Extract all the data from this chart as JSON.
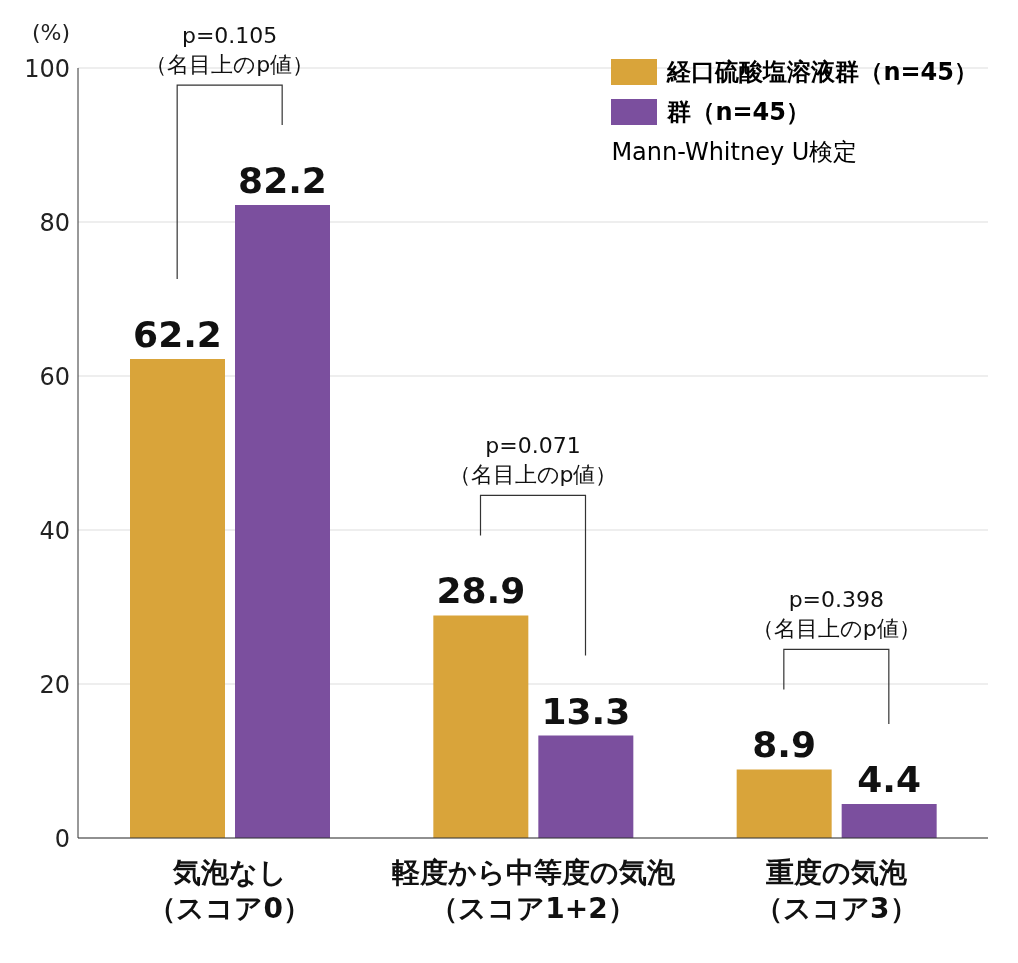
{
  "chart_data": {
    "type": "bar",
    "ylabel": "(%)",
    "categories": [
      "気泡なし（スコア0）",
      "軽度から中等度の気泡（スコア1+2）",
      "重度の気泡（スコア3）"
    ],
    "series": [
      {
        "name": "経口硫酸塩溶液群（n=45）",
        "color": "#d9a43a",
        "values": [
          62.2,
          28.9,
          8.9
        ]
      },
      {
        "name": "群（n=45）",
        "color": "#7b4f9e",
        "values": [
          82.2,
          13.3,
          4.4
        ]
      }
    ],
    "ylim": [
      0,
      100
    ],
    "yticks": [
      0,
      20,
      40,
      60,
      80,
      100
    ],
    "grid": "y",
    "legend": "top right",
    "data_labels": true,
    "annotations": [
      "p=0.105（名目上のp値）",
      "p=0.071（名目上のp値）",
      "p=0.398（名目上のp値）",
      "Mann-Whitney U検定"
    ]
  }
}
